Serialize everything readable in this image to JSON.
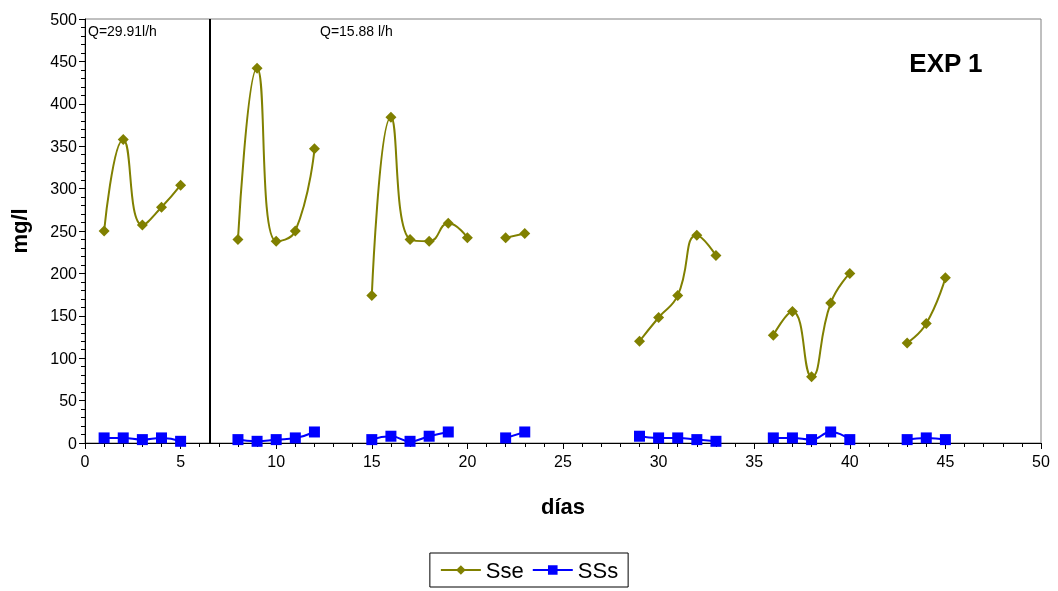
{
  "chart_data": {
    "type": "line",
    "title": "EXP 1",
    "xlabel": "días",
    "ylabel": "mg/l",
    "annotations": [
      "Q=29.91l/h",
      "Q=15.88 l/h"
    ],
    "ref_lines": [
      {
        "axis": "x",
        "value": 6.5,
        "color": "#000000"
      }
    ],
    "x": [
      1,
      2,
      3,
      4,
      5,
      6,
      8,
      9,
      10,
      11,
      12,
      13,
      15,
      16,
      17,
      18,
      19,
      20,
      21,
      22,
      23,
      24,
      29,
      30,
      31,
      32,
      33,
      34,
      36,
      37,
      38,
      39,
      40,
      41,
      43,
      44,
      45
    ],
    "series": [
      {
        "name": "Sse",
        "color": "#808000",
        "marker": "diamond",
        "values": [
          250,
          358,
          257,
          278,
          304,
          null,
          240,
          442,
          238,
          250,
          347,
          null,
          174,
          384,
          240,
          238,
          259,
          242,
          null,
          242,
          247,
          null,
          120,
          148,
          174,
          245,
          221,
          null,
          127,
          155,
          78,
          165,
          200,
          null,
          118,
          141,
          195
        ]
      },
      {
        "name": "SSs",
        "color": "#0000ff",
        "marker": "square",
        "values": [
          6,
          6,
          4,
          6,
          2,
          null,
          4,
          2,
          4,
          6,
          13,
          null,
          4,
          8,
          2,
          8,
          13,
          null,
          null,
          6,
          13,
          null,
          8,
          6,
          6,
          4,
          2,
          null,
          6,
          6,
          4,
          13,
          4,
          null,
          4,
          6,
          4
        ]
      }
    ],
    "xlim": [
      0,
      50
    ],
    "xticks": [
      0,
      5,
      10,
      15,
      20,
      25,
      30,
      35,
      40,
      45,
      50
    ],
    "ylim": [
      0,
      500
    ],
    "yticks": [
      0,
      50,
      100,
      150,
      200,
      250,
      300,
      350,
      400,
      450,
      500
    ],
    "grid": false,
    "legend": "bottom",
    "line_style": "solid"
  }
}
